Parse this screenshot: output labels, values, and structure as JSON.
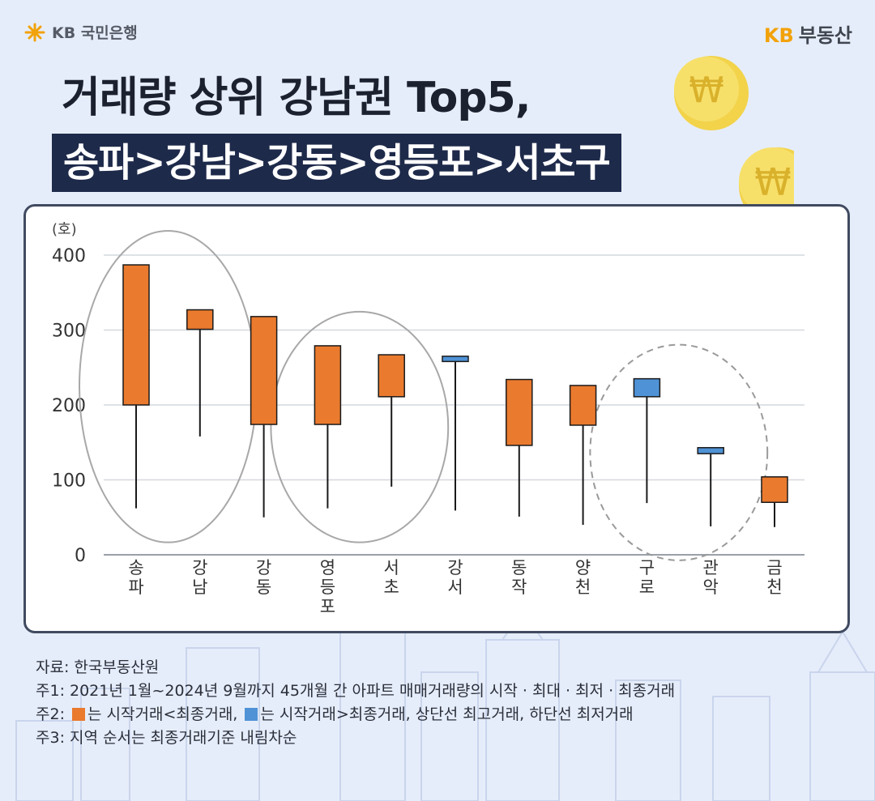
{
  "header": {
    "bank_logo": "KB 국민은행",
    "brand_kb": "KB",
    "brand_name": "부동산"
  },
  "title": {
    "line1": "거래량 상위 강남권 Top5,",
    "line2": "송파>강남>강동>영등포>서초구"
  },
  "chart_data": {
    "type": "candlestick",
    "unit_label": "(호)",
    "ylim": [
      0,
      400
    ],
    "yticks": [
      0,
      100,
      200,
      300,
      400
    ],
    "categories": [
      "송\n파",
      "강\n남",
      "강\n동",
      "영\n등\n포",
      "서\n초",
      "강\n서",
      "동\n작",
      "양\n천",
      "구\n로",
      "관\n악",
      "금\n천"
    ],
    "open": [
      200,
      301,
      174,
      174,
      211,
      265,
      146,
      173,
      235,
      143,
      70
    ],
    "close": [
      387,
      327,
      318,
      279,
      267,
      258,
      234,
      226,
      211,
      135,
      104
    ],
    "high": [
      387,
      327,
      318,
      279,
      267,
      265,
      234,
      226,
      235,
      143,
      104
    ],
    "low": [
      62,
      158,
      50,
      62,
      91,
      59,
      51,
      40,
      69,
      38,
      37
    ],
    "colors": {
      "up": "#ea7a2e",
      "down": "#4f92d6"
    },
    "highlight_groups": [
      {
        "indices": [
          0,
          1
        ],
        "style": "solid"
      },
      {
        "indices": [
          3,
          4
        ],
        "style": "solid"
      },
      {
        "indices": [
          8,
          9
        ],
        "style": "dashed"
      }
    ]
  },
  "notes": {
    "source": "자료: 한국부동산원",
    "note1": "주1: 2021년 1월~2024년 9월까지 45개월 간 아파트 매매거래량의 시작 · 최대 · 최저 · 최종거래",
    "note2_prefix": "주2:",
    "note2_up": "는 시작거래<최종거래,",
    "note2_down": "는 시작거래>최종거래, 상단선 최고거래, 하단선 최저거래",
    "note3": "주3: 지역 순서는 최종거래기준 내림차순"
  }
}
